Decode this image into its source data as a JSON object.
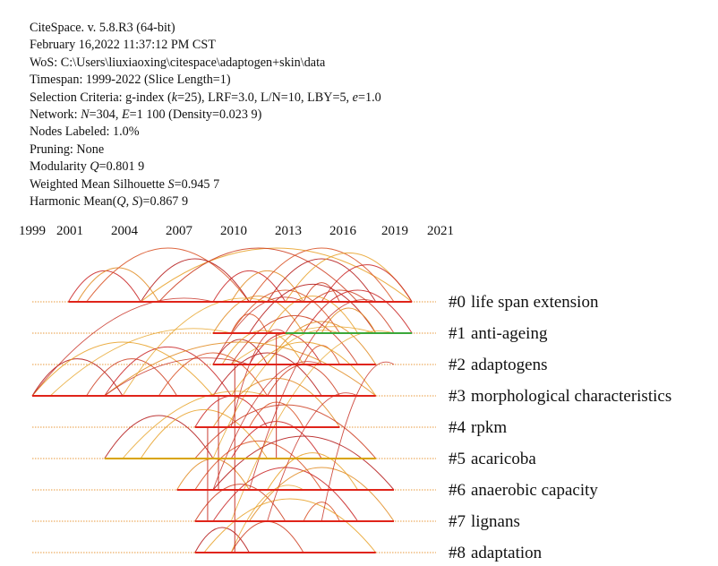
{
  "header": {
    "lines": [
      {
        "parts": [
          {
            "t": "CiteSpace. v. 5.8.R3 (64-bit)"
          }
        ]
      },
      {
        "parts": [
          {
            "t": "February 16,2022 11:37:12 PM CST"
          }
        ]
      },
      {
        "parts": [
          {
            "t": "WoS: C:\\Users\\liuxiaoxing\\citespace\\adaptogen+skin\\data"
          }
        ]
      },
      {
        "parts": [
          {
            "t": "Timespan: 1999-2022 (Slice Length=1)"
          }
        ]
      },
      {
        "parts": [
          {
            "t": "Selection Criteria: g-index ("
          },
          {
            "t": "k",
            "i": true
          },
          {
            "t": "=25), LRF=3.0, L/N=10, LBY=5, "
          },
          {
            "t": "e",
            "i": true
          },
          {
            "t": "=1.0"
          }
        ]
      },
      {
        "parts": [
          {
            "t": "Network: "
          },
          {
            "t": "N",
            "i": true
          },
          {
            "t": "=304, "
          },
          {
            "t": "E",
            "i": true
          },
          {
            "t": "=1 100 (Density=0.023 9)"
          }
        ]
      },
      {
        "parts": [
          {
            "t": "Nodes Labeled: 1.0%"
          }
        ]
      },
      {
        "parts": [
          {
            "t": "Pruning: None"
          }
        ]
      },
      {
        "parts": [
          {
            "t": "Modularity "
          },
          {
            "t": "Q",
            "i": true
          },
          {
            "t": "=0.801 9"
          }
        ]
      },
      {
        "parts": [
          {
            "t": "Weighted Mean Silhouette "
          },
          {
            "t": "S",
            "i": true
          },
          {
            "t": "=0.945 7"
          }
        ]
      },
      {
        "parts": [
          {
            "t": "Harmonic Mean("
          },
          {
            "t": "Q",
            "i": true
          },
          {
            "t": ", "
          },
          {
            "t": "S",
            "i": true
          },
          {
            "t": ")=0.867 9"
          }
        ]
      }
    ]
  },
  "chart_data": {
    "type": "timeline",
    "x_ticks": [
      "1999",
      "2001",
      "2004",
      "2007",
      "2010",
      "2013",
      "2016",
      "2019",
      "2021"
    ],
    "tick_years": [
      1999,
      2001,
      2004,
      2007,
      2010,
      2013,
      2016,
      2019,
      2021
    ],
    "xlim": [
      1999,
      2022
    ],
    "clusters": [
      {
        "id": "#0",
        "label": "life span extension",
        "active": [
          2001,
          2020
        ],
        "color": "#e0241a"
      },
      {
        "id": "#1",
        "label": "anti-ageing",
        "active": [
          2009,
          2020
        ],
        "color": "#e0241a",
        "recent": [
          2013,
          2020
        ],
        "recent_color": "#3aa83a"
      },
      {
        "id": "#2",
        "label": "adaptogens",
        "active": [
          2009,
          2018
        ],
        "color": "#e0241a"
      },
      {
        "id": "#3",
        "label": "morphological characteristics",
        "active": [
          1999,
          2018
        ],
        "color": "#e0241a"
      },
      {
        "id": "#4",
        "label": "rpkm",
        "active": [
          2008,
          2016
        ],
        "color": "#e0241a"
      },
      {
        "id": "#5",
        "label": "acaricoba",
        "active": [
          2003,
          2018
        ],
        "color": "#d9a400"
      },
      {
        "id": "#6",
        "label": "anaerobic capacity",
        "active": [
          2007,
          2019
        ],
        "color": "#e0241a"
      },
      {
        "id": "#7",
        "label": "lignans",
        "active": [
          2008,
          2019
        ],
        "color": "#e0241a"
      },
      {
        "id": "#8",
        "label": "adaptation",
        "active": [
          2008,
          2018
        ],
        "color": "#e0241a"
      }
    ],
    "links": [
      {
        "c": 0,
        "from": 2001,
        "to": 2005
      },
      {
        "c": 0,
        "from": 2001.5,
        "to": 2006
      },
      {
        "c": 0,
        "from": 2002,
        "to": 2011
      },
      {
        "c": 0,
        "from": 2005,
        "to": 2011
      },
      {
        "c": 0,
        "from": 2005,
        "to": 2020
      },
      {
        "c": 0,
        "from": 2006,
        "to": 2017
      },
      {
        "c": 0,
        "from": 2009,
        "to": 2013
      },
      {
        "c": 0,
        "from": 2010,
        "to": 2014
      },
      {
        "c": 0,
        "from": 2011,
        "to": 2019
      },
      {
        "c": 0,
        "from": 2012,
        "to": 2018
      },
      {
        "c": 0,
        "from": 2013,
        "to": 2020
      },
      {
        "c": 0,
        "from": 2014,
        "to": 2016
      },
      {
        "c": 0,
        "from": 2015,
        "to": 2020
      },
      {
        "c": 1,
        "from": 2009,
        "to": 2014
      },
      {
        "c": 1,
        "from": 2010,
        "to": 2016
      },
      {
        "c": 1,
        "from": 2011,
        "to": 2018
      },
      {
        "c": 1,
        "from": 2012,
        "to": 2017
      },
      {
        "c": 1,
        "from": 2013,
        "to": 2019
      },
      {
        "c": 1,
        "from": 2014,
        "to": 2020
      },
      {
        "c": 1,
        "from": 2015,
        "to": 2018
      },
      {
        "c": 1,
        "from": 2010,
        "to": 2012
      },
      {
        "c": 2,
        "from": 2009,
        "to": 2012
      },
      {
        "c": 2,
        "from": 2009.5,
        "to": 2014
      },
      {
        "c": 2,
        "from": 2010,
        "to": 2017
      },
      {
        "c": 2,
        "from": 2011,
        "to": 2015
      },
      {
        "c": 2,
        "from": 2012,
        "to": 2018
      },
      {
        "c": 2,
        "from": 2014,
        "to": 2016
      },
      {
        "c": 3,
        "from": 1999,
        "to": 2004
      },
      {
        "c": 3,
        "from": 1999,
        "to": 2009
      },
      {
        "c": 3,
        "from": 2002,
        "to": 2007
      },
      {
        "c": 3,
        "from": 2003,
        "to": 2010
      },
      {
        "c": 3,
        "from": 2003,
        "to": 2018
      },
      {
        "c": 3,
        "from": 2006,
        "to": 2012
      },
      {
        "c": 3,
        "from": 2009,
        "to": 2015
      },
      {
        "c": 3,
        "from": 2010,
        "to": 2018
      },
      {
        "c": 3,
        "from": 2012,
        "to": 2016
      },
      {
        "c": 4,
        "from": 2008,
        "to": 2012
      },
      {
        "c": 4,
        "from": 2009,
        "to": 2016
      },
      {
        "c": 4,
        "from": 2011,
        "to": 2014
      },
      {
        "c": 5,
        "from": 2003,
        "to": 2009
      },
      {
        "c": 5,
        "from": 2005,
        "to": 2012
      },
      {
        "c": 5,
        "from": 2008,
        "to": 2018
      },
      {
        "c": 5,
        "from": 2010,
        "to": 2015
      },
      {
        "c": 6,
        "from": 2007,
        "to": 2011
      },
      {
        "c": 6,
        "from": 2008,
        "to": 2015
      },
      {
        "c": 6,
        "from": 2009,
        "to": 2019
      },
      {
        "c": 6,
        "from": 2012,
        "to": 2017
      },
      {
        "c": 7,
        "from": 2008,
        "to": 2013
      },
      {
        "c": 7,
        "from": 2009,
        "to": 2017
      },
      {
        "c": 7,
        "from": 2011,
        "to": 2019
      },
      {
        "c": 7,
        "from": 2014,
        "to": 2016
      },
      {
        "c": 8,
        "from": 2008,
        "to": 2011
      },
      {
        "c": 8,
        "from": 2008.5,
        "to": 2018
      },
      {
        "c": 8,
        "from": 2010,
        "to": 2014
      }
    ],
    "cross_links": [
      {
        "from_c": 3,
        "from": 1999,
        "to_c": 0,
        "to": 2009
      },
      {
        "from_c": 3,
        "from": 2000,
        "to_c": 1,
        "to": 2010
      },
      {
        "from_c": 3,
        "from": 2003,
        "to_c": 2,
        "to": 2011
      },
      {
        "from_c": 3,
        "from": 2004,
        "to_c": 0,
        "to": 2012
      },
      {
        "from_c": 2,
        "from": 2009,
        "to_c": 0,
        "to": 2014
      },
      {
        "from_c": 2,
        "from": 2010,
        "to_c": 1,
        "to": 2018
      },
      {
        "from_c": 4,
        "from": 2010,
        "to_c": 1,
        "to": 2013
      },
      {
        "from_c": 5,
        "from": 2004,
        "to_c": 3,
        "to": 2012
      },
      {
        "from_c": 6,
        "from": 2009,
        "to_c": 2,
        "to": 2015
      },
      {
        "from_c": 7,
        "from": 2010,
        "to_c": 1,
        "to": 2019
      },
      {
        "from_c": 7,
        "from": 2012,
        "to_c": 3,
        "to": 2017
      },
      {
        "from_c": 8,
        "from": 2010,
        "to_c": 6,
        "to": 2014
      },
      {
        "from_c": 6,
        "from": 2011,
        "to_c": 0,
        "to": 2018
      },
      {
        "from_c": 5,
        "from": 2009,
        "to_c": 1,
        "to": 2016
      },
      {
        "from_c": 7,
        "from": 2015,
        "to_c": 2,
        "to": 2019
      }
    ]
  }
}
